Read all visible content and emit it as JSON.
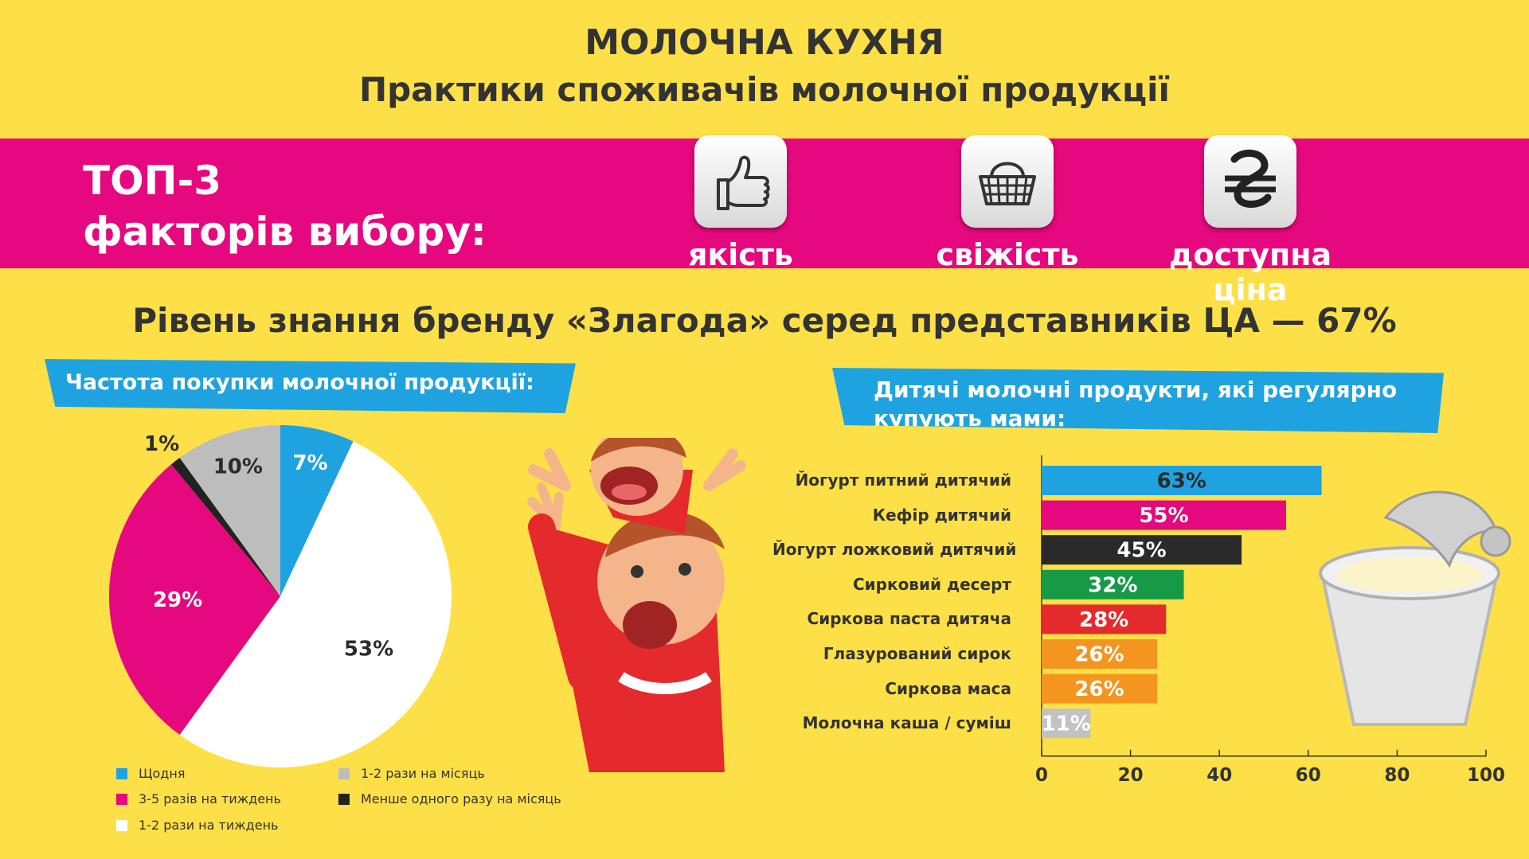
{
  "header": {
    "title_line1": "МОЛОЧНА КУХНЯ",
    "title_line2": "Практики споживачів молочної продукції"
  },
  "top3": {
    "line1": "ТОП-3",
    "line2": "факторів вибору:",
    "factors": [
      {
        "label": "якість",
        "icon": "thumbs-up-icon"
      },
      {
        "label": "свіжість",
        "icon": "shopping-basket-icon"
      },
      {
        "label": "доступна ціна",
        "icon": "hryvnia-icon"
      }
    ]
  },
  "awareness": "Рівень знання бренду «Злагода» серед представників ЦА — 67%",
  "colors": {
    "background": "#fde047",
    "magenta": "#e6087e",
    "blue": "#1fa3e0",
    "white": "#ffffff",
    "grey": "#bdbdbd",
    "black": "#222222",
    "green": "#179a46",
    "red": "#e42a2d",
    "orange": "#f3951e",
    "light_grey": "#c2c2c2"
  },
  "chart_data": [
    {
      "type": "pie",
      "title": "Частота покупки молочної продукції:",
      "slices": [
        {
          "label": "Щодня",
          "value": 7,
          "display": "7%",
          "color": "#1fa3e0"
        },
        {
          "label": "1-2 рази на тиждень",
          "value": 53,
          "display": "53%",
          "color": "#ffffff"
        },
        {
          "label": "3-5 разів на тиждень",
          "value": 29,
          "display": "29%",
          "color": "#e6087e"
        },
        {
          "label": "Менше одного разу на місяць",
          "value": 1,
          "display": "1%",
          "color": "#222222"
        },
        {
          "label": "1-2 рази на місяць",
          "value": 10,
          "display": "10%",
          "color": "#bdbdbd"
        }
      ],
      "legend": [
        {
          "label": "Щодня",
          "color": "#1fa3e0"
        },
        {
          "label": "3-5 разів на тиждень",
          "color": "#e6087e"
        },
        {
          "label": "1-2 рази на тиждень",
          "color": "#ffffff"
        },
        {
          "label": "1-2 рази на місяць",
          "color": "#bdbdbd"
        },
        {
          "label": "Менше одного разу на місяць",
          "color": "#222222"
        }
      ],
      "legend_placement": "bottom"
    },
    {
      "type": "bar",
      "orientation": "horizontal",
      "title": "Дитячі молочні продукти, які регулярно купують мами:",
      "categories": [
        "Йогурт питний дитячий",
        "Кефір дитячий",
        "Йогурт ложковий дитячий",
        "Сирковий десерт",
        "Сиркова паста дитяча",
        "Глазурований сирок",
        "Сиркова маса",
        "Молочна каша / суміш"
      ],
      "values": [
        63,
        55,
        45,
        32,
        28,
        26,
        26,
        11
      ],
      "labels": [
        "63%",
        "55%",
        "45%",
        "32%",
        "28%",
        "26%",
        "26%",
        "11%"
      ],
      "colors": [
        "#1fa3e0",
        "#e6087e",
        "#2a2a2a",
        "#179a46",
        "#e42a2d",
        "#f3951e",
        "#f3951e",
        "#c2c2c2"
      ],
      "label_colors": [
        "#2b2b2b",
        "#ffffff",
        "#ffffff",
        "#ffffff",
        "#ffffff",
        "#ffffff",
        "#ffffff",
        "#ffffff"
      ],
      "xlim": [
        0,
        100
      ],
      "xticks": [
        "0",
        "20",
        "40",
        "60",
        "80",
        "100"
      ],
      "grid": false
    }
  ]
}
